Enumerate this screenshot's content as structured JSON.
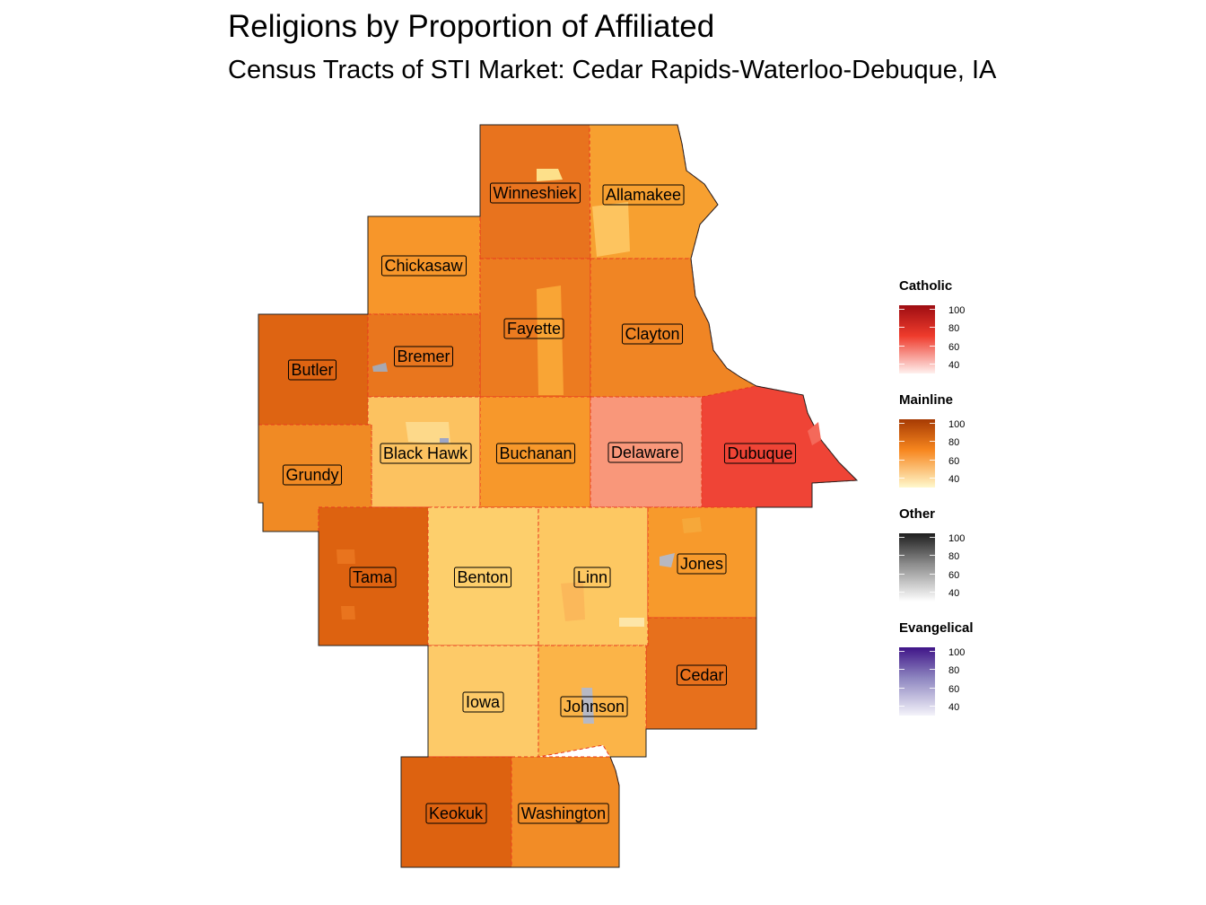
{
  "title": "Religions by Proportion of Affiliated",
  "subtitle": "Census Tracts of STI Market: Cedar Rapids-Waterloo-Debuque, IA",
  "counties": [
    {
      "name": "Winneshiek",
      "group": "Mainline",
      "color": "#e8731e"
    },
    {
      "name": "Allamakee",
      "group": "Mainline",
      "color": "#f7a030"
    },
    {
      "name": "Chickasaw",
      "group": "Mainline",
      "color": "#f7962a"
    },
    {
      "name": "Fayette",
      "group": "Mainline",
      "color": "#ec7b20"
    },
    {
      "name": "Clayton",
      "group": "Mainline",
      "color": "#f08524"
    },
    {
      "name": "Butler",
      "group": "Mainline",
      "color": "#de6412"
    },
    {
      "name": "Bremer",
      "group": "Mainline",
      "color": "#e9761e"
    },
    {
      "name": "Black Hawk",
      "group": "Mainline",
      "color": "#fcc260"
    },
    {
      "name": "Buchanan",
      "group": "Mainline",
      "color": "#f7982b"
    },
    {
      "name": "Delaware",
      "group": "Catholic",
      "color": "#f9977a"
    },
    {
      "name": "Dubuque",
      "group": "Catholic",
      "color": "#ef4436"
    },
    {
      "name": "Grundy",
      "group": "Mainline",
      "color": "#f08a24"
    },
    {
      "name": "Tama",
      "group": "Mainline",
      "color": "#dd6210"
    },
    {
      "name": "Benton",
      "group": "Mainline",
      "color": "#fdcf6c"
    },
    {
      "name": "Linn",
      "group": "Mainline",
      "color": "#fdc862"
    },
    {
      "name": "Jones",
      "group": "Mainline",
      "color": "#f79a2c"
    },
    {
      "name": "Cedar",
      "group": "Mainline",
      "color": "#e7701c"
    },
    {
      "name": "Iowa",
      "group": "Mainline",
      "color": "#fdca68"
    },
    {
      "name": "Johnson",
      "group": "Mainline",
      "color": "#fbb448"
    },
    {
      "name": "Keokuk",
      "group": "Mainline",
      "color": "#dd6210"
    },
    {
      "name": "Washington",
      "group": "Mainline",
      "color": "#f28c26"
    }
  ],
  "legend": [
    {
      "title": "Catholic",
      "color_high": "#9e0d12",
      "color_mid": "#ef3b2c",
      "color_low": "#fff0ee",
      "ticks": [
        "100",
        "80",
        "60",
        "40"
      ]
    },
    {
      "title": "Mainline",
      "color_high": "#a63a03",
      "color_mid": "#f7861e",
      "color_low": "#fff8cc",
      "ticks": [
        "100",
        "80",
        "60",
        "40"
      ]
    },
    {
      "title": "Other",
      "color_high": "#1e1e1e",
      "color_mid": "#8c8c8c",
      "color_low": "#ffffff",
      "ticks": [
        "100",
        "80",
        "60",
        "40"
      ]
    },
    {
      "title": "Evangelical",
      "color_high": "#3f1488",
      "color_mid": "#8e86c0",
      "color_low": "#f4f3fa",
      "ticks": [
        "100",
        "80",
        "60",
        "40"
      ]
    }
  ]
}
